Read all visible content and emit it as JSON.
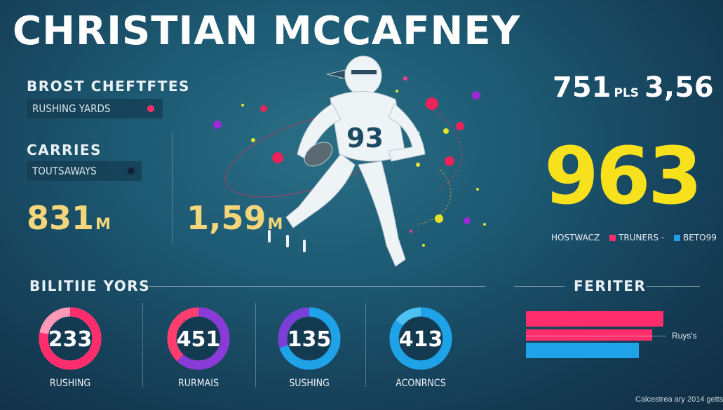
{
  "title": "CHRISTIAN MCCAFNEY",
  "left_panel": {
    "heading1": "BROST CHEFTFTES",
    "tag1": "RUSHING YARDS",
    "heading2": "CARRIES",
    "tag2": "TOUTSAWAYS",
    "stat1_value": "831",
    "stat1_unit": "M",
    "stat2_value": "1,59",
    "stat2_unit": "M"
  },
  "player": {
    "jersey_number": "93"
  },
  "right_panel": {
    "top_value1": "751",
    "top_unit": "PLS",
    "top_value2": "3,56",
    "big_value": "963",
    "legend": [
      {
        "label": "HOSTWACZ",
        "color": ""
      },
      {
        "label": "TRUNERS -",
        "color": "#ff2d6b"
      },
      {
        "label": "BETO99",
        "color": "#1fa3e8"
      }
    ]
  },
  "bottom": {
    "section_title": "BILITIIE YORS",
    "rings": [
      {
        "value": "233",
        "label": "RUSHING",
        "fraction": 0.78,
        "colors": [
          "#ff2d6b",
          "#ff9ab8"
        ]
      },
      {
        "value": "451",
        "label": "RURMAIS",
        "fraction": 0.62,
        "colors": [
          "#8a3ad8",
          "#ff3d6e"
        ]
      },
      {
        "value": "135",
        "label": "SUSHING",
        "fraction": 0.7,
        "colors": [
          "#1fa3e8",
          "#7a3fd6"
        ]
      },
      {
        "value": "413",
        "label": "ACONRNCS",
        "fraction": 0.85,
        "colors": [
          "#1fa3e8",
          "#4fc0f2"
        ]
      }
    ]
  },
  "feature": {
    "title": "FERITER",
    "annotation": "Ruys's",
    "bars": [
      {
        "value": 1.0,
        "color": "#ff2d6b"
      },
      {
        "value": 0.92,
        "color": "#ff2d6b"
      },
      {
        "value": 0.82,
        "color": "#1fa3e8"
      }
    ]
  },
  "credit": "Calcestrea ary 2014 getts",
  "colors": {
    "accent_yellow": "#f7e11d",
    "stat_gold": "#f4d67a",
    "pink": "#ff2d6b",
    "blue": "#1fa3e8"
  }
}
